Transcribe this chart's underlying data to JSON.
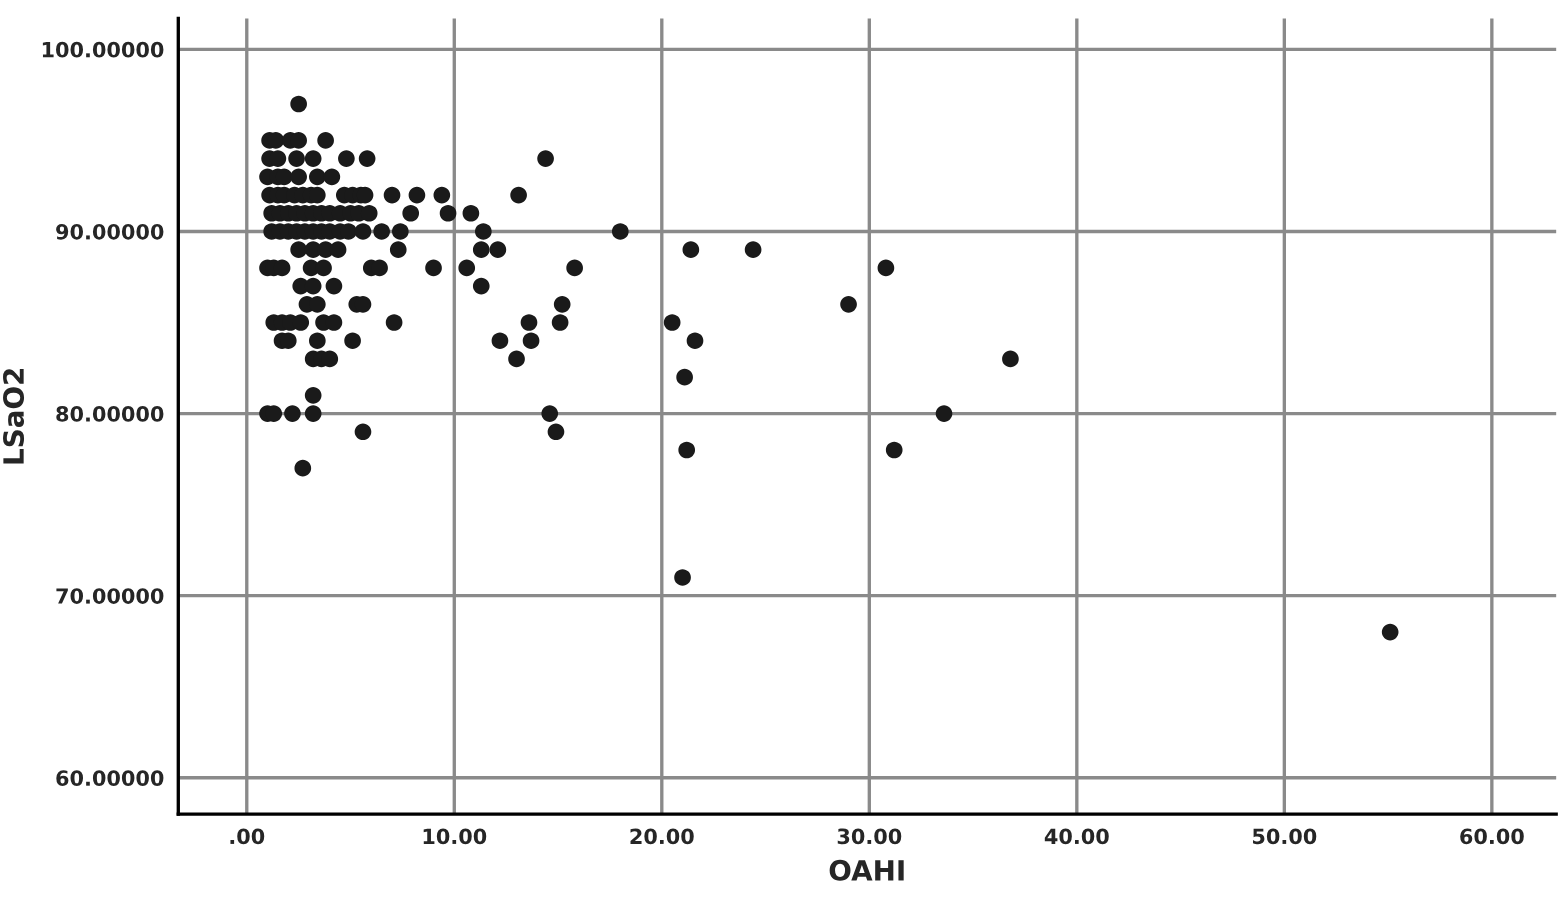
{
  "chart_data": {
    "type": "scatter",
    "xlabel": "OAHI",
    "ylabel": "LSaO2",
    "xlim": [
      -3.3,
      63.1
    ],
    "ylim": [
      58,
      101.7
    ],
    "xticks": [
      {
        "value": 0,
        "label": ".00"
      },
      {
        "value": 10,
        "label": "10.00"
      },
      {
        "value": 20,
        "label": "20.00"
      },
      {
        "value": 30,
        "label": "30.00"
      },
      {
        "value": 40,
        "label": "40.00"
      },
      {
        "value": 50,
        "label": "50.00"
      },
      {
        "value": 60,
        "label": "60.00"
      }
    ],
    "yticks": [
      {
        "value": 60,
        "label": "60.00000"
      },
      {
        "value": 70,
        "label": "70.00000"
      },
      {
        "value": 80,
        "label": "80.00000"
      },
      {
        "value": 90,
        "label": "90.00000"
      },
      {
        "value": 100,
        "label": "100.00000"
      }
    ],
    "grid": true,
    "marker": "circle",
    "series": [
      {
        "color": "#1a1a1a",
        "x": [
          2.5,
          1.1,
          1.4,
          2.1,
          2.5,
          3.8,
          1.1,
          1.5,
          2.4,
          3.2,
          4.8,
          5.8,
          14.4,
          1.0,
          1.5,
          1.8,
          2.5,
          3.4,
          4.1,
          1.1,
          1.5,
          1.8,
          2.3,
          2.7,
          3.1,
          3.4,
          4.7,
          5.1,
          5.5,
          5.7,
          7.0,
          8.2,
          9.4,
          13.1,
          1.2,
          1.6,
          2.0,
          2.4,
          2.8,
          3.2,
          3.6,
          4.0,
          4.5,
          5.0,
          5.4,
          5.9,
          7.9,
          9.7,
          10.8,
          1.2,
          1.6,
          2.0,
          2.4,
          2.8,
          3.2,
          3.6,
          4.0,
          4.5,
          4.9,
          5.6,
          6.5,
          7.4,
          11.4,
          18.0,
          2.5,
          3.2,
          3.8,
          4.4,
          7.3,
          11.3,
          12.1,
          21.4,
          24.4,
          1.0,
          1.3,
          1.7,
          3.1,
          3.7,
          6.0,
          6.4,
          9.0,
          10.6,
          15.8,
          30.8,
          2.6,
          3.2,
          4.2,
          11.3,
          2.9,
          3.4,
          5.3,
          5.6,
          15.2,
          29.0,
          1.3,
          1.7,
          2.1,
          2.6,
          3.7,
          4.2,
          7.1,
          13.6,
          15.1,
          20.5,
          1.7,
          2.0,
          3.4,
          5.1,
          12.2,
          13.7,
          21.6,
          3.2,
          3.6,
          4.0,
          13.0,
          36.8,
          21.1,
          3.2,
          1.0,
          1.3,
          2.2,
          3.2,
          14.6,
          33.6,
          5.6,
          14.9,
          21.2,
          31.2,
          2.7,
          21.0,
          55.1
        ],
        "values": [
          97,
          95,
          95,
          95,
          95,
          95,
          94,
          94,
          94,
          94,
          94,
          94,
          94,
          93,
          93,
          93,
          93,
          93,
          93,
          92,
          92,
          92,
          92,
          92,
          92,
          92,
          92,
          92,
          92,
          92,
          92,
          92,
          92,
          92,
          91,
          91,
          91,
          91,
          91,
          91,
          91,
          91,
          91,
          91,
          91,
          91,
          91,
          91,
          91,
          90,
          90,
          90,
          90,
          90,
          90,
          90,
          90,
          90,
          90,
          90,
          90,
          90,
          90,
          90,
          89,
          89,
          89,
          89,
          89,
          89,
          89,
          89,
          89,
          88,
          88,
          88,
          88,
          88,
          88,
          88,
          88,
          88,
          88,
          88,
          87,
          87,
          87,
          87,
          86,
          86,
          86,
          86,
          86,
          86,
          85,
          85,
          85,
          85,
          85,
          85,
          85,
          85,
          85,
          85,
          84,
          84,
          84,
          84,
          84,
          84,
          84,
          83,
          83,
          83,
          83,
          83,
          82,
          81,
          80,
          80,
          80,
          80,
          80,
          80,
          79,
          79,
          78,
          78,
          77,
          71,
          68
        ]
      }
    ]
  }
}
